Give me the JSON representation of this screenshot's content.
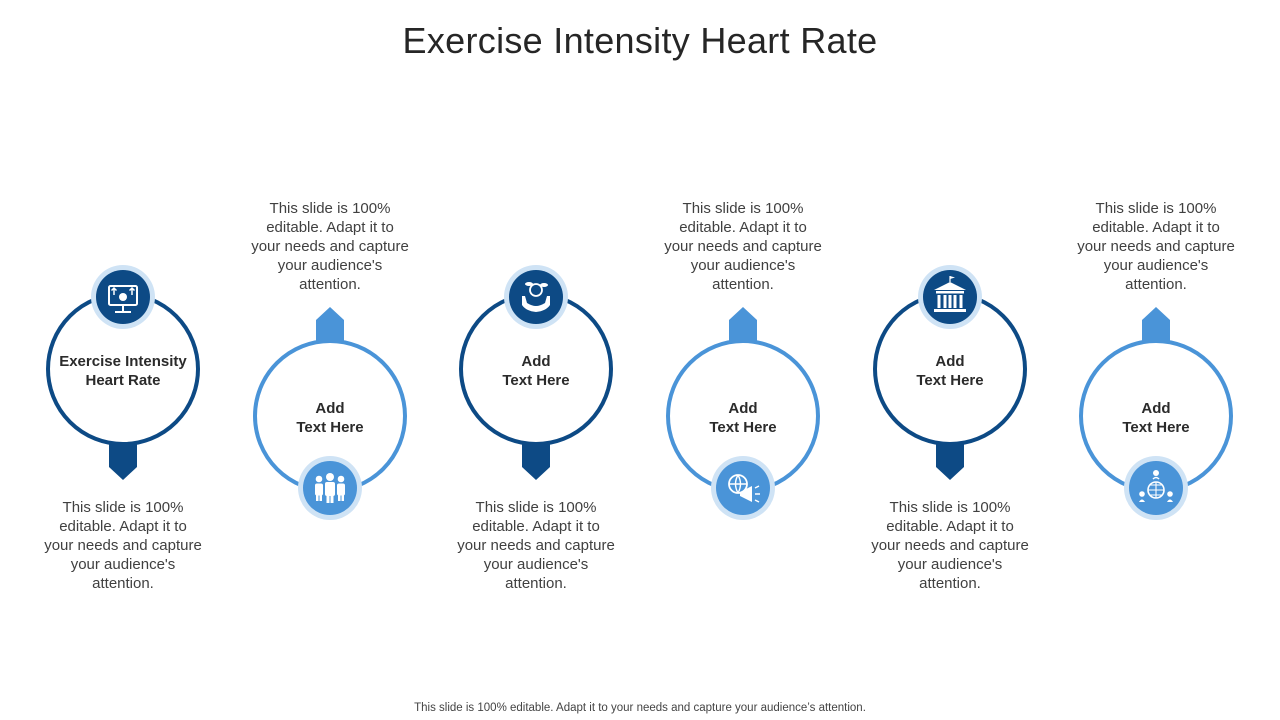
{
  "title": "Exercise Intensity Heart Rate",
  "footer": "This slide is 100% editable. Adapt it to your needs and capture your audience’s attention.",
  "colors": {
    "dark": "#0d4a85",
    "light": "#4a94d8",
    "icon_ring": "#cfe3f5"
  },
  "items": [
    {
      "label_line1": "Exercise Intensity",
      "label_line2": "Heart Rate",
      "icon": "monitor-money-icon",
      "desc": "This slide is 100% editable. Adapt it to your needs and capture your audience's attention."
    },
    {
      "label_line1": "Add",
      "label_line2": "Text Here",
      "icon": "team-group-icon",
      "desc": "This slide is 100% editable. Adapt it to your needs and capture your audience's attention."
    },
    {
      "label_line1": "Add",
      "label_line2": "Text Here",
      "icon": "hand-coins-icon",
      "desc": "This slide is 100% editable. Adapt it to your needs and capture your audience's attention."
    },
    {
      "label_line1": "Add",
      "label_line2": "Text Here",
      "icon": "globe-megaphone-icon",
      "desc": "This slide is 100% editable. Adapt it to your needs and capture your audience's attention."
    },
    {
      "label_line1": "Add",
      "label_line2": "Text Here",
      "icon": "bank-building-icon",
      "desc": "This slide is 100% editable. Adapt it to your needs and capture your audience's attention."
    },
    {
      "label_line1": "Add",
      "label_line2": "Text Here",
      "icon": "global-network-icon",
      "desc": "This slide is 100% editable. Adapt it to your needs and capture your audience's attention."
    }
  ]
}
